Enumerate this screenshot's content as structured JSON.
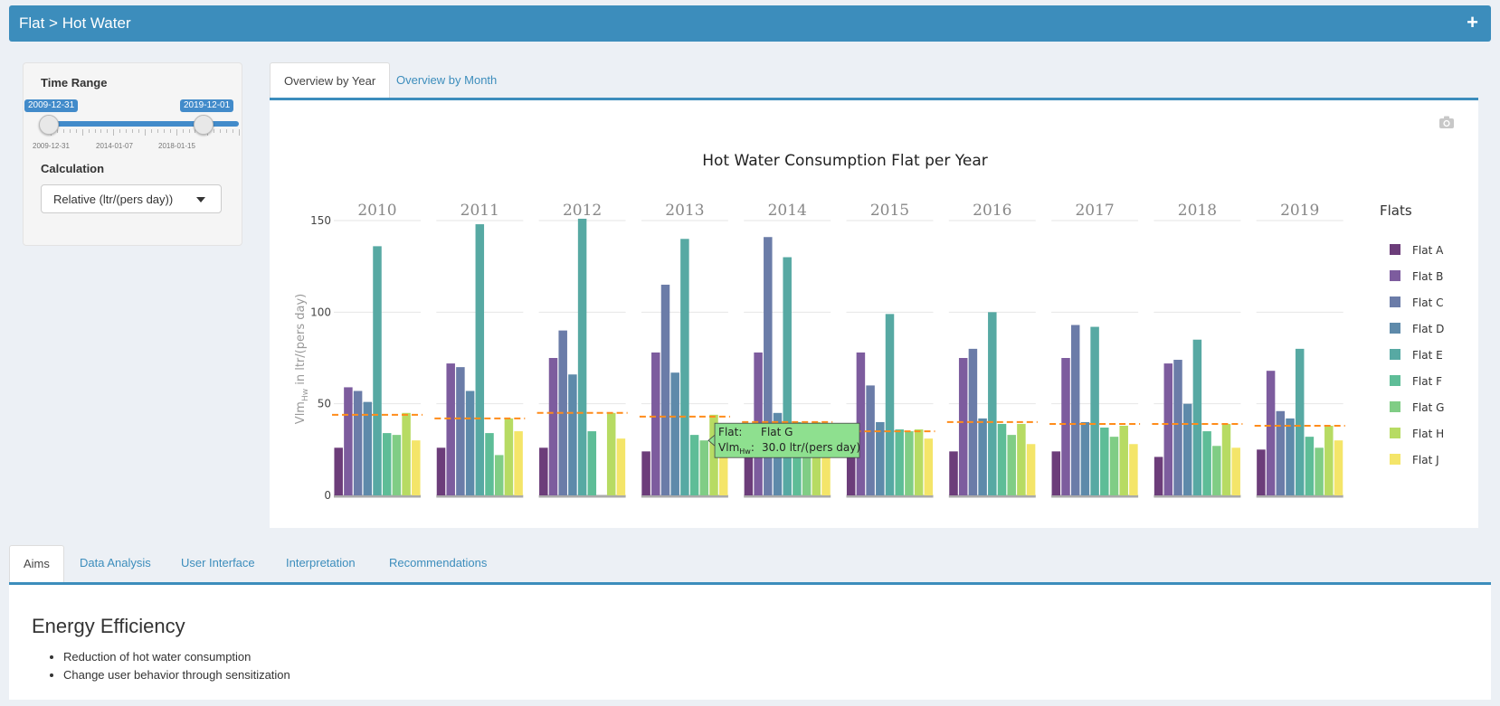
{
  "header": {
    "title": "Flat > Hot Water",
    "plus": "+"
  },
  "sidebar": {
    "time_range_label": "Time Range",
    "slider": {
      "from": "2009-12-31",
      "to": "2019-12-01",
      "tick_labels": [
        "2009-12-31",
        "2014-01-07",
        "2018-01-15"
      ]
    },
    "calculation_label": "Calculation",
    "calculation_value": "Relative (ltr/(pers day))"
  },
  "tabs_top": [
    {
      "label": "Overview by Year",
      "active": true
    },
    {
      "label": "Overview by Month",
      "active": false
    }
  ],
  "chart_data": {
    "type": "bar",
    "title": "Hot Water Consumption Flat per Year",
    "ylabel_main": "Vlm",
    "ylabel_sub": "Hw",
    "ylabel_rest": " in ltr/(pers day)",
    "ylim": [
      0,
      150
    ],
    "yticks": [
      0,
      50,
      100,
      150
    ],
    "legend_title": "Flats",
    "legend_position": "right",
    "facets": [
      "2010",
      "2011",
      "2012",
      "2013",
      "2014",
      "2015",
      "2016",
      "2017",
      "2018",
      "2019"
    ],
    "series": [
      {
        "name": "Flat A",
        "color": "#6c3d7a",
        "values": [
          26,
          26,
          26,
          24,
          24,
          24,
          24,
          24,
          21,
          25
        ]
      },
      {
        "name": "Flat B",
        "color": "#7d5c9e",
        "values": [
          59,
          72,
          75,
          78,
          78,
          78,
          75,
          75,
          72,
          68
        ]
      },
      {
        "name": "Flat C",
        "color": "#6b7ca8",
        "values": [
          57,
          70,
          90,
          115,
          141,
          60,
          80,
          93,
          74,
          46
        ]
      },
      {
        "name": "Flat D",
        "color": "#5e8aaa",
        "values": [
          51,
          57,
          66,
          67,
          45,
          40,
          42,
          40,
          50,
          42
        ]
      },
      {
        "name": "Flat E",
        "color": "#57a9a3",
        "values": [
          136,
          148,
          151,
          140,
          130,
          99,
          100,
          92,
          85,
          80
        ]
      },
      {
        "name": "Flat F",
        "color": "#5ebd97",
        "values": [
          34,
          34,
          35,
          33,
          40,
          36,
          39,
          37,
          35,
          32
        ]
      },
      {
        "name": "Flat G",
        "color": "#80cd85",
        "values": [
          33,
          22,
          0,
          30,
          38,
          35,
          33,
          32,
          27,
          26
        ]
      },
      {
        "name": "Flat H",
        "color": "#b7db63",
        "values": [
          45,
          42,
          45,
          44,
          40,
          36,
          39,
          38,
          39,
          38
        ]
      },
      {
        "name": "Flat J",
        "color": "#f4e569",
        "values": [
          30,
          35,
          31,
          32,
          32,
          31,
          28,
          28,
          26,
          30
        ]
      }
    ],
    "mean_line": [
      44,
      42,
      45,
      43,
      40,
      35,
      40,
      39,
      39,
      38
    ],
    "mean_line_color": "#ff8c1a",
    "tooltip": {
      "facet_index": 3,
      "series_index": 6,
      "key1": "Flat:",
      "value1": "Flat G",
      "key2_main": "Vlm",
      "key2_sub": "Hw",
      "key2_suffix": ":",
      "value2": "30.0 ltr/(pers day)"
    }
  },
  "tabs_bottom": [
    {
      "label": "Aims",
      "active": true
    },
    {
      "label": "Data Analysis",
      "active": false
    },
    {
      "label": "User Interface",
      "active": false
    },
    {
      "label": "Interpretation",
      "active": false
    },
    {
      "label": "Recommendations",
      "active": false
    }
  ],
  "aims": {
    "title": "Energy Efficiency",
    "bullets": [
      "Reduction of hot water consumption",
      "Change user behavior through sensitization"
    ]
  },
  "icons": {
    "camera": "camera-icon",
    "caret": "caret-down-icon",
    "plus": "plus-icon"
  }
}
